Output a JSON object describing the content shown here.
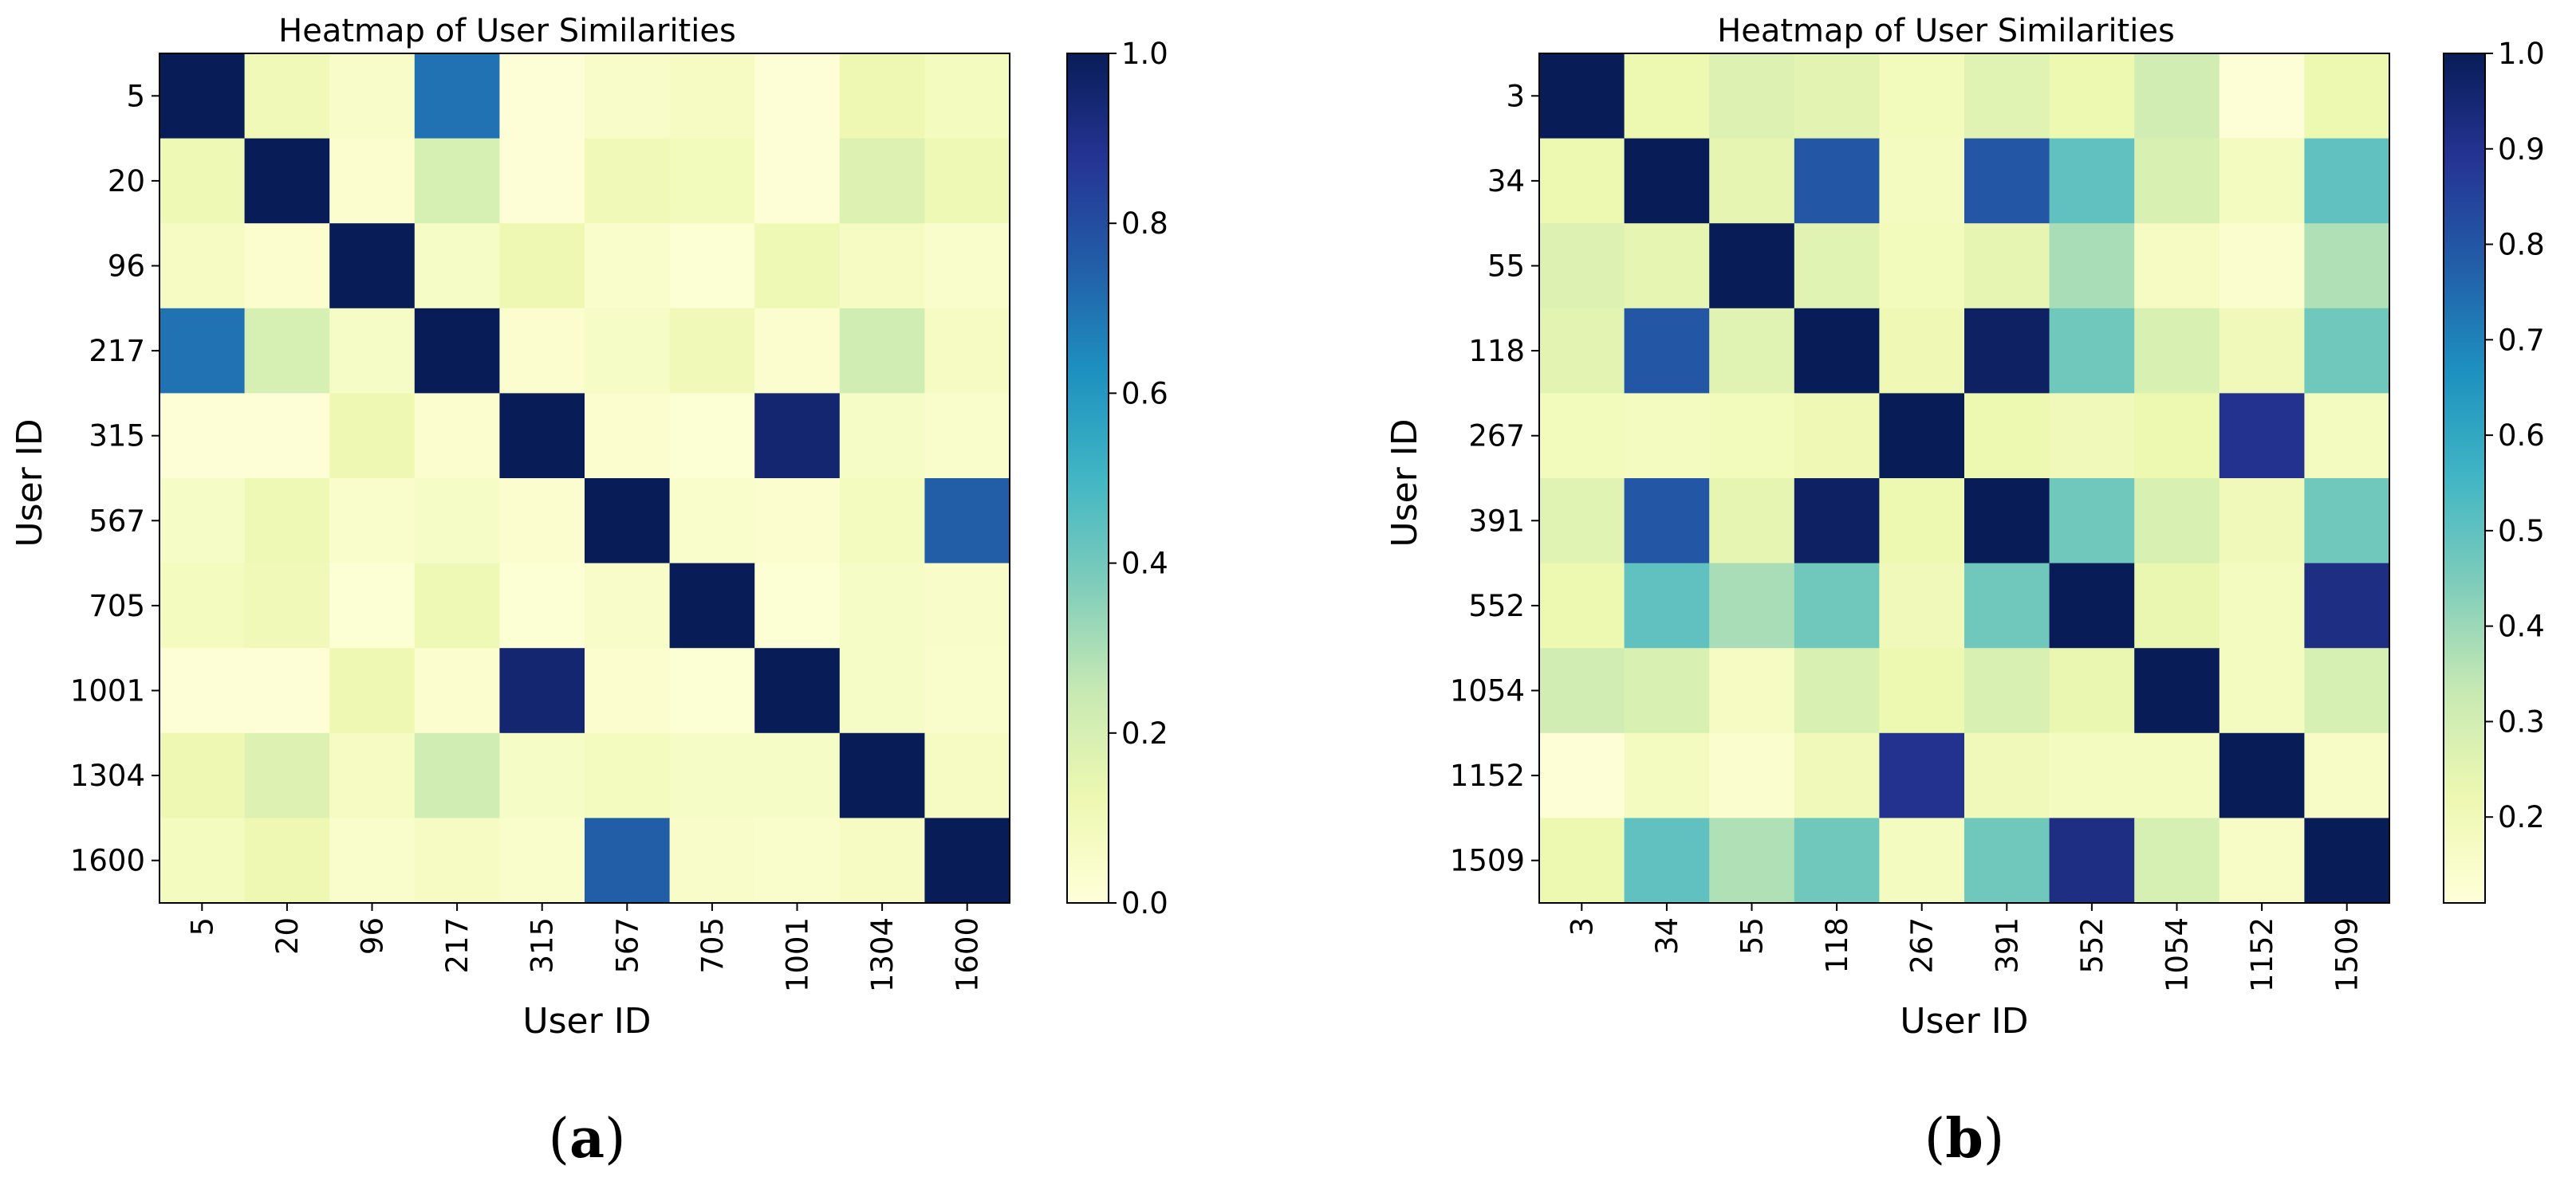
{
  "chart_data": [
    {
      "type": "heatmap",
      "panel_label": "a",
      "title": "Heatmap of User Similarities",
      "xlabel": "User ID",
      "ylabel": "User ID",
      "categories": [
        "5",
        "20",
        "96",
        "217",
        "315",
        "567",
        "705",
        "1001",
        "1304",
        "1600"
      ],
      "colorbar": {
        "min": 0.0,
        "max": 1.0,
        "ticks": [
          "0.0",
          "0.2",
          "0.4",
          "0.6",
          "0.8",
          "1.0"
        ],
        "colormap": "YlGnBu"
      },
      "values": [
        [
          1.0,
          0.1,
          0.05,
          0.7,
          0.01,
          0.05,
          0.07,
          0.01,
          0.12,
          0.08
        ],
        [
          0.11,
          1.0,
          0.03,
          0.2,
          0.01,
          0.1,
          0.09,
          0.01,
          0.18,
          0.11
        ],
        [
          0.07,
          0.03,
          1.0,
          0.06,
          0.12,
          0.04,
          0.02,
          0.11,
          0.07,
          0.04
        ],
        [
          0.7,
          0.2,
          0.06,
          1.0,
          0.03,
          0.06,
          0.1,
          0.03,
          0.22,
          0.07
        ],
        [
          0.01,
          0.01,
          0.12,
          0.03,
          1.0,
          0.03,
          0.02,
          0.95,
          0.06,
          0.04
        ],
        [
          0.06,
          0.11,
          0.04,
          0.06,
          0.03,
          1.0,
          0.04,
          0.03,
          0.08,
          0.75
        ],
        [
          0.08,
          0.1,
          0.02,
          0.11,
          0.02,
          0.05,
          1.0,
          0.02,
          0.06,
          0.05
        ],
        [
          0.01,
          0.01,
          0.12,
          0.03,
          0.95,
          0.03,
          0.02,
          1.0,
          0.06,
          0.04
        ],
        [
          0.12,
          0.18,
          0.07,
          0.22,
          0.06,
          0.08,
          0.06,
          0.06,
          1.0,
          0.07
        ],
        [
          0.08,
          0.12,
          0.04,
          0.07,
          0.04,
          0.75,
          0.05,
          0.04,
          0.07,
          1.0
        ]
      ]
    },
    {
      "type": "heatmap",
      "panel_label": "b",
      "title": "Heatmap of User Similarities",
      "xlabel": "User ID",
      "ylabel": "User ID",
      "categories": [
        "3",
        "34",
        "55",
        "118",
        "267",
        "391",
        "552",
        "1054",
        "1152",
        "1509"
      ],
      "colorbar": {
        "min": 0.11,
        "max": 1.0,
        "ticks": [
          "0.2",
          "0.3",
          "0.4",
          "0.5",
          "0.6",
          "0.7",
          "0.8",
          "0.9",
          "1.0"
        ],
        "colormap": "YlGnBu"
      },
      "values": [
        [
          1.0,
          0.22,
          0.27,
          0.25,
          0.19,
          0.26,
          0.22,
          0.3,
          0.12,
          0.22
        ],
        [
          0.22,
          1.0,
          0.24,
          0.8,
          0.18,
          0.8,
          0.5,
          0.28,
          0.18,
          0.5
        ],
        [
          0.27,
          0.24,
          1.0,
          0.26,
          0.19,
          0.24,
          0.38,
          0.17,
          0.14,
          0.37
        ],
        [
          0.25,
          0.8,
          0.26,
          1.0,
          0.21,
          0.98,
          0.47,
          0.28,
          0.2,
          0.47
        ],
        [
          0.19,
          0.18,
          0.19,
          0.21,
          1.0,
          0.22,
          0.2,
          0.22,
          0.9,
          0.18
        ],
        [
          0.26,
          0.8,
          0.24,
          0.98,
          0.22,
          1.0,
          0.47,
          0.28,
          0.2,
          0.47
        ],
        [
          0.22,
          0.5,
          0.38,
          0.47,
          0.2,
          0.47,
          1.0,
          0.23,
          0.18,
          0.92
        ],
        [
          0.3,
          0.28,
          0.17,
          0.28,
          0.22,
          0.28,
          0.23,
          1.0,
          0.18,
          0.29
        ],
        [
          0.12,
          0.18,
          0.14,
          0.2,
          0.9,
          0.2,
          0.18,
          0.18,
          1.0,
          0.16
        ],
        [
          0.22,
          0.5,
          0.37,
          0.47,
          0.18,
          0.47,
          0.92,
          0.29,
          0.16,
          1.0
        ]
      ]
    }
  ]
}
